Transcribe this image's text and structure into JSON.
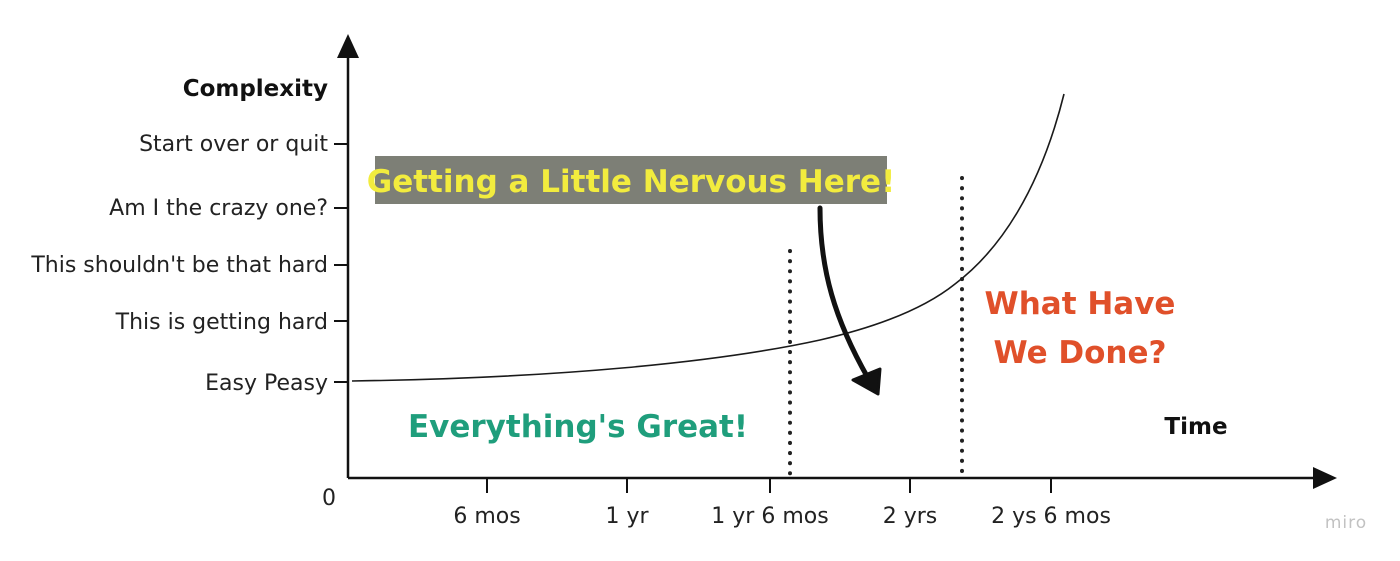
{
  "axes": {
    "y_title": "Complexity",
    "x_title": "Time",
    "origin_label": "0"
  },
  "y_levels": [
    "Easy Peasy",
    "This is getting hard",
    "This shouldn't be that hard",
    "Am I the crazy one?",
    "Start over or quit"
  ],
  "x_ticks": [
    "6 mos",
    "1 yr",
    "1 yr 6 mos",
    "2 yrs",
    "2 ys 6 mos"
  ],
  "annotations": {
    "nervous_banner": "Getting a Little Nervous Here!",
    "great_zone": "Everything's Great!",
    "done_zone_line1": "What Have",
    "done_zone_line2": "We Done?"
  },
  "watermark": "miro",
  "colors": {
    "great": "#1f9e7c",
    "done": "#e0502a",
    "banner_text": "#f2ec3e",
    "banner_bg": "#7d7f76",
    "curve": "#1a1a1a"
  }
}
